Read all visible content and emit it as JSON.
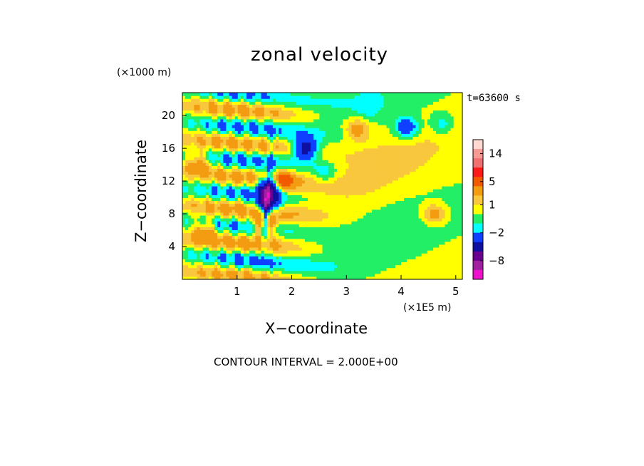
{
  "chart_data": {
    "type": "heatmap",
    "title": "zonal velocity",
    "xlabel": "X−coordinate",
    "ylabel": "Z−coordinate",
    "x_unit_label": "(×1E5 m)",
    "y_unit_label": "(×1000 m)",
    "time_label": "t=63600 s",
    "contour_interval_label": "CONTOUR INTERVAL = 2.000E+00",
    "xlim": [
      0,
      5.12
    ],
    "ylim": [
      0,
      22.8
    ],
    "x_ticks": [
      1,
      2,
      3,
      4,
      5
    ],
    "y_ticks": [
      4,
      8,
      12,
      16,
      20
    ],
    "colorbar": {
      "tick_labels": [
        {
          "value": 14,
          "text": "14"
        },
        {
          "value": 5,
          "text": "5"
        },
        {
          "value": 1,
          "text": "1"
        },
        {
          "value": -2,
          "text": "−2"
        },
        {
          "value": -8,
          "text": "−8"
        }
      ],
      "levels": [
        {
          "from": 16,
          "to": 18,
          "color": "#ffd8d2"
        },
        {
          "from": 12,
          "to": 16,
          "color": "#f79a96"
        },
        {
          "from": 8,
          "to": 12,
          "color": "#f07070"
        },
        {
          "from": 6,
          "to": 8,
          "color": "#ff1a1a"
        },
        {
          "from": 4,
          "to": 6,
          "color": "#f25a00"
        },
        {
          "from": 2,
          "to": 4,
          "color": "#f39c12"
        },
        {
          "from": 1,
          "to": 2,
          "color": "#f9c73d"
        },
        {
          "from": 0,
          "to": 1,
          "color": "#ffff00"
        },
        {
          "from": -1,
          "to": 0,
          "color": "#22ee66"
        },
        {
          "from": -2,
          "to": -1,
          "color": "#00ffff"
        },
        {
          "from": -4,
          "to": -2,
          "color": "#1040ff"
        },
        {
          "from": -6,
          "to": -4,
          "color": "#1010a0"
        },
        {
          "from": -8,
          "to": -6,
          "color": "#6a0090"
        },
        {
          "from": -10,
          "to": -8,
          "color": "#a020a0"
        },
        {
          "from": -14,
          "to": -10,
          "color": "#ee11cc"
        }
      ]
    },
    "features": [
      {
        "x": 2.25,
        "z": 16.0,
        "value": -6
      },
      {
        "x": 1.55,
        "z": 9.2,
        "value": -6
      },
      {
        "x": 1.62,
        "z": 11.5,
        "value": -8
      },
      {
        "x": 1.8,
        "z": 12.0,
        "value": 6
      },
      {
        "x": 1.5,
        "z": 6.5,
        "value": 4
      },
      {
        "x": 4.1,
        "z": 18.6,
        "value": -4
      },
      {
        "x": 4.75,
        "z": 19.0,
        "value": -2
      },
      {
        "x": 3.2,
        "z": 18.4,
        "value": 3
      },
      {
        "x": 2.6,
        "z": 13.0,
        "value": -2
      },
      {
        "x": 4.6,
        "z": 8.0,
        "value": 3
      },
      {
        "x": 0.4,
        "z": 6.0,
        "value": 3
      },
      {
        "x": 0.3,
        "z": 14.5,
        "value": 3
      },
      {
        "x": 3.4,
        "z": 21.0,
        "value": -1
      }
    ]
  }
}
